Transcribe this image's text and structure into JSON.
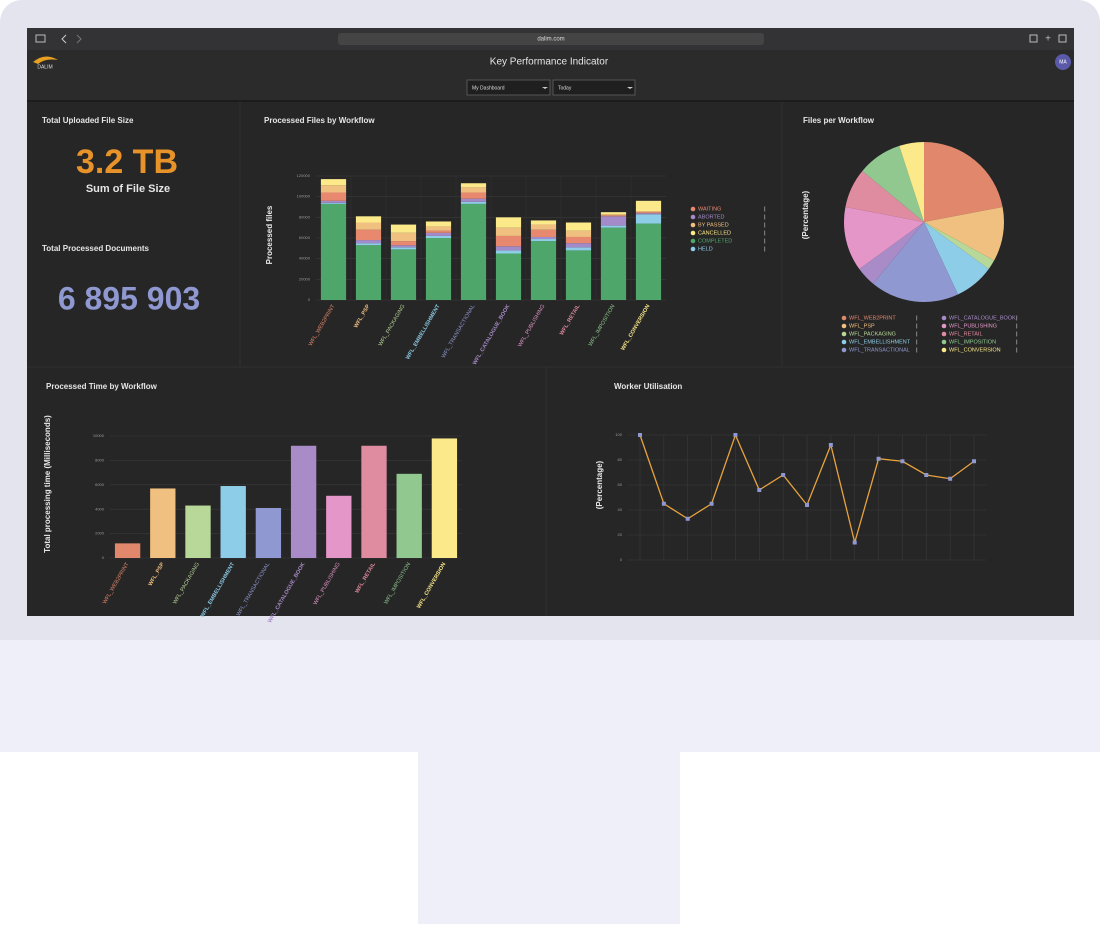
{
  "browser": {
    "url": "dalim.com"
  },
  "header": {
    "logo": "DALIM",
    "title": "Key Performance Indicator",
    "dashboard": "My Dashboard",
    "period": "Today",
    "avatar": "MA"
  },
  "kpis": [
    {
      "title": "Total Uploaded File Size",
      "value": "3.2 TB",
      "caption": "Sum of File Size"
    },
    {
      "title": "Total Processed Documents",
      "value": "6 895 903"
    }
  ],
  "chart_data": [
    {
      "type": "stacked_bar",
      "title": "Processed Files by Workflow",
      "y_label": "Processed files",
      "categories": [
        "WFL_WEB2PRINT",
        "WFL_PSP",
        "WFL_PACKAGING",
        "WFL_EMBELLISHMENT",
        "WFL_TRANSACTIONAL",
        "WFL_CATALOGUE_BOOK",
        "WFL_PUBLISHING",
        "WFL_RETAIL",
        "WFL_IMPOSITION",
        "WFL_CONVERSION"
      ],
      "category_colors": [
        "#e0876c",
        "#f0c080",
        "#b8d89a",
        "#8ecde8",
        "#8f98d0",
        "#a98bc8",
        "#e596c8",
        "#e08ca0",
        "#90c890",
        "#fbe98a"
      ],
      "series": [
        {
          "name": "WAITING",
          "color": "#e8896f",
          "values": [
            8000,
            10000,
            4000,
            2000,
            6000,
            10000,
            7000,
            6000,
            1000,
            1000
          ]
        },
        {
          "name": "ABORTED",
          "color": "#a28bc8",
          "values": [
            2000,
            3000,
            2000,
            3000,
            3000,
            4000,
            2000,
            4000,
            9000,
            1000
          ]
        },
        {
          "name": "BY PASSED",
          "color": "#f0c080",
          "values": [
            7000,
            7000,
            8000,
            4000,
            5000,
            8000,
            5000,
            6000,
            1000,
            1000
          ]
        },
        {
          "name": "CANCELLED",
          "color": "#fbe98a",
          "values": [
            6000,
            6000,
            8000,
            5000,
            4000,
            10000,
            4000,
            8000,
            2000,
            10000
          ]
        },
        {
          "name": "COMPLETED",
          "color": "#4fa66a",
          "values": [
            93000,
            53000,
            49000,
            60000,
            93000,
            45000,
            57000,
            48000,
            70000,
            74000
          ]
        },
        {
          "name": "HELD",
          "color": "#8ecde8",
          "values": [
            1000,
            2000,
            2000,
            2000,
            2000,
            3000,
            2000,
            3000,
            2000,
            9000
          ]
        }
      ],
      "stack_order": [
        "COMPLETED",
        "HELD",
        "ABORTED",
        "WAITING",
        "BY PASSED",
        "CANCELLED"
      ],
      "ylim": [
        0,
        120000
      ],
      "yticks": [
        0,
        20000,
        40000,
        60000,
        80000,
        100000,
        120000
      ],
      "grid": true
    },
    {
      "type": "pie",
      "title": "Files per Workflow",
      "y_label": "(Percentage)",
      "categories": [
        "WFL_WEB2PRINT",
        "WFL_PSP",
        "WFL_PACKAGING",
        "WFL_EMBELLISHMENT",
        "WFL_TRANSACTIONAL",
        "WFL_CATALOGUE_BOOK",
        "WFL_PUBLISHING",
        "WFL_RETAIL",
        "WFL_IMPOSITION",
        "WFL_CONVERSION"
      ],
      "colors": [
        "#e0876c",
        "#f0c080",
        "#b8d89a",
        "#8ecde8",
        "#8f98d0",
        "#a98bc8",
        "#e596c8",
        "#e08ca0",
        "#90c890",
        "#fbe98a"
      ],
      "values": [
        22,
        11,
        2,
        8,
        18,
        4,
        13,
        8,
        9,
        5
      ]
    },
    {
      "type": "bar",
      "title": "Processed Time by Workflow",
      "y_label": "Total processing time (Milliseconds)",
      "categories": [
        "WFL_WEB2PRINT",
        "WFL_PSP",
        "WFL_PACKAGING",
        "WFL_EMBELLISHMENT",
        "WFL_TRANSACTIONAL",
        "WFL_CATALOGUE_BOOK",
        "WFL_PUBLISHING",
        "WFL_RETAIL",
        "WFL_IMPOSITION",
        "WFL_CONVERSION"
      ],
      "colors": [
        "#e0876c",
        "#f0c080",
        "#b8d89a",
        "#8ecde8",
        "#8f98d0",
        "#a98bc8",
        "#e596c8",
        "#e08ca0",
        "#90c890",
        "#fbe98a"
      ],
      "values": [
        1200,
        5700,
        4300,
        5900,
        4100,
        9200,
        5100,
        9200,
        6900,
        9800
      ],
      "ylim": [
        0,
        10000
      ],
      "yticks": [
        0,
        2000,
        4000,
        6000,
        8000,
        10000
      ],
      "grid": true
    },
    {
      "type": "line",
      "title": "Worker Utilisation",
      "y_label": "(Percentage)",
      "values": [
        100,
        45,
        33,
        45,
        100,
        56,
        68,
        44,
        92,
        14,
        81,
        79,
        68,
        65,
        79
      ],
      "color": "#e8a33d",
      "marker_color": "#8f98d0",
      "ylim": [
        0,
        100
      ],
      "yticks": [
        0,
        20,
        40,
        60,
        80,
        100
      ],
      "grid": true
    }
  ]
}
